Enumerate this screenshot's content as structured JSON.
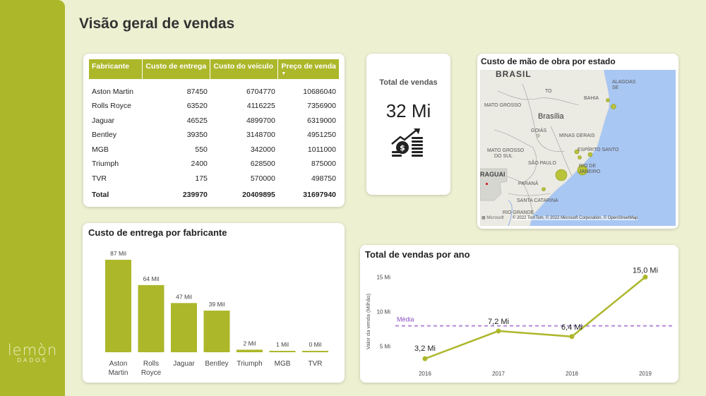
{
  "page_title": "Visão geral de vendas",
  "brand": {
    "word": "lemòn",
    "sub": "DADOS",
    "accent": "#acb72a",
    "background": "#eef0d2"
  },
  "table": {
    "headers": [
      "Fabricante",
      "Custo de entrega",
      "Custo do veículo",
      "Preço de venda"
    ],
    "sort_indicator": "▼",
    "rows": [
      [
        "Aston Martin",
        "87450",
        "6704770",
        "10686040"
      ],
      [
        "Rolls Royce",
        "63520",
        "4116225",
        "7356900"
      ],
      [
        "Jaguar",
        "46525",
        "4899700",
        "6319000"
      ],
      [
        "Bentley",
        "39350",
        "3148700",
        "4951250"
      ],
      [
        "MGB",
        "550",
        "342000",
        "1011000"
      ],
      [
        "Triumph",
        "2400",
        "628500",
        "875000"
      ],
      [
        "TVR",
        "175",
        "570000",
        "498750"
      ]
    ],
    "total": [
      "Total",
      "239970",
      "20409895",
      "31697940"
    ]
  },
  "kpi": {
    "label": "Total de vendas",
    "value": "32 Mi",
    "icon": "money-growth-icon"
  },
  "map": {
    "title": "Custo de mão de obra por estado",
    "labels": {
      "country": "BRASIL",
      "to": "TO",
      "ba": "BAHIA",
      "mt": "MATO GROSSO",
      "brasilia": "Brasília",
      "go": "GOIÁS",
      "mg": "MINAS GERAIS",
      "ms1": "MATO GROSSO",
      "ms2": "DO SUL",
      "es": "ESPÍRITO SANTO",
      "sp": "SÃO PAULO",
      "rj1": "RIO DE",
      "rj2": "JANEIRO",
      "pr": "PARANÁ",
      "sc": "SANTA CATARINA",
      "rs": "RIO GRANDE",
      "py": "RAGUAI",
      "al1": "ALAGOAS",
      "al2": "SE"
    },
    "attribution": "© 2022 TomTom, © 2022 Microsoft Corporation, © OpenStreetMap",
    "ms_label": "Microsoft"
  },
  "bar_chart": {
    "title": "Custo de entrega por fabricante",
    "chart_data": {
      "type": "bar",
      "categories": [
        "Aston Martin",
        "Rolls Royce",
        "Jaguar",
        "Bentley",
        "Triumph",
        "MGB",
        "TVR"
      ],
      "values": [
        87450,
        63520,
        46525,
        39350,
        2400,
        550,
        175
      ],
      "data_labels": [
        "87 Mil",
        "64 Mil",
        "47 Mil",
        "39 Mil",
        "2 Mil",
        "1 Mil",
        "0 Mil"
      ],
      "color": "#acb72a"
    }
  },
  "line_chart": {
    "title": "Total de vendas por ano",
    "chart_data": {
      "type": "line",
      "x": [
        "2016",
        "2017",
        "2018",
        "2019"
      ],
      "values": [
        3.2,
        7.2,
        6.4,
        15.0
      ],
      "data_labels": [
        "3,2 Mi",
        "7,2 Mi",
        "6,4 Mi",
        "15,0 Mi"
      ],
      "ylabel": "Valor da venda (Milhão)",
      "yticks": [
        5,
        10,
        15
      ],
      "ytick_labels": [
        "5 Mi",
        "10 Mi",
        "15 Mi"
      ],
      "ylim": [
        0,
        16
      ],
      "average_label": "Média",
      "average_value": 7.95,
      "line_color": "#acb72a",
      "average_color": "#b58ad9"
    }
  }
}
